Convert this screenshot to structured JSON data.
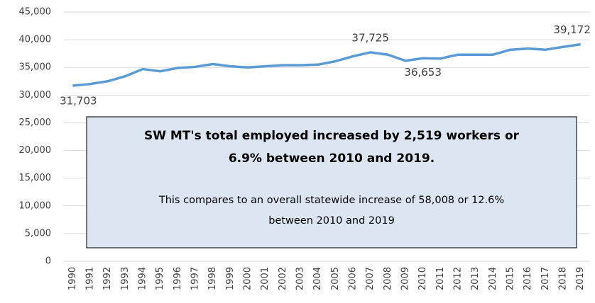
{
  "chart_data": {
    "type": "line",
    "categories": [
      "1990",
      "1991",
      "1992",
      "1993",
      "1994",
      "1995",
      "1996",
      "1997",
      "1998",
      "1999",
      "2000",
      "2001",
      "2002",
      "2003",
      "2004",
      "2005",
      "2006",
      "2007",
      "2008",
      "2009",
      "2010",
      "2011",
      "2012",
      "2013",
      "2014",
      "2015",
      "2016",
      "2017",
      "2018",
      "2019"
    ],
    "values": [
      31703,
      32000,
      32500,
      33400,
      34700,
      34300,
      34900,
      35100,
      35600,
      35200,
      35000,
      35200,
      35400,
      35400,
      35500,
      36100,
      37000,
      37725,
      37300,
      36200,
      36653,
      36600,
      37300,
      37300,
      37300,
      38200,
      38400,
      38200,
      38700,
      39172
    ],
    "value_labels": [
      "31,703",
      null,
      null,
      null,
      null,
      null,
      null,
      null,
      null,
      null,
      null,
      null,
      null,
      null,
      null,
      null,
      null,
      "37,725",
      null,
      null,
      "36,653",
      null,
      null,
      null,
      null,
      null,
      null,
      null,
      null,
      "39,172"
    ],
    "color": "#5b9bd5",
    "ylim": [
      0,
      45000
    ],
    "yticks": [
      0,
      {
        "value": 5000,
        "label": "5,000"
      },
      {
        "value": 10000,
        "label": "10,000"
      },
      {
        "value": 15000,
        "label": "15,000"
      },
      {
        "value": 20000,
        "label": "20,000"
      },
      {
        "value": 25000,
        "label": "25,000"
      },
      {
        "value": 30000,
        "label": "30,000"
      },
      {
        "value": 35000,
        "label": "35,000"
      },
      {
        "value": 40000,
        "label": "40,000"
      },
      {
        "value": 45000,
        "label": "45,000"
      }
    ],
    "grid": true,
    "annotation": {
      "headline": [
        "SW MT's total employed increased by 2,519 workers or",
        "6.9% between 2010 and 2019."
      ],
      "body": [
        "This compares to  an overall statewide increase of 58,008 or 12.6%",
        "between  2010 and 2019"
      ]
    }
  }
}
